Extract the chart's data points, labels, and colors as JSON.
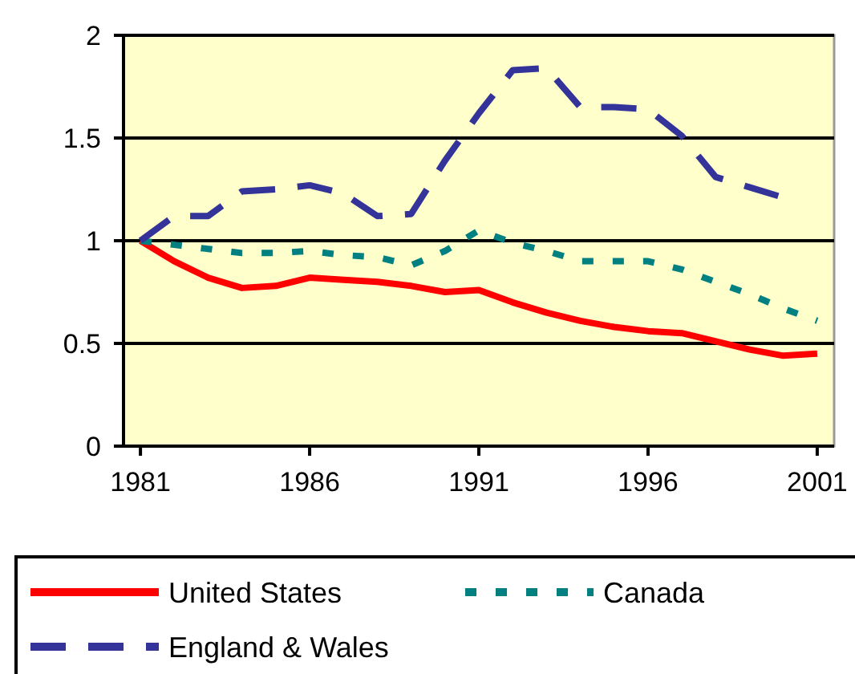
{
  "chart_data": {
    "type": "line",
    "x": [
      1981,
      1982,
      1983,
      1984,
      1985,
      1986,
      1987,
      1988,
      1989,
      1990,
      1991,
      1992,
      1993,
      1994,
      1995,
      1996,
      1997,
      1998,
      1999,
      2000,
      2001
    ],
    "series": [
      {
        "name": "United States",
        "color": "#ff0000",
        "line_style": "solid",
        "values": [
          1.0,
          0.9,
          0.82,
          0.77,
          0.78,
          0.82,
          0.81,
          0.8,
          0.78,
          0.75,
          0.76,
          0.7,
          0.65,
          0.61,
          0.58,
          0.56,
          0.55,
          0.51,
          0.47,
          0.44,
          0.45
        ]
      },
      {
        "name": "Canada",
        "color": "#008080",
        "line_style": "dotted",
        "values": [
          1.0,
          0.98,
          0.96,
          0.94,
          0.94,
          0.95,
          0.93,
          0.92,
          0.88,
          0.95,
          1.05,
          0.99,
          0.95,
          0.9,
          0.9,
          0.9,
          0.86,
          0.8,
          0.74,
          0.67,
          0.61
        ]
      },
      {
        "name": "England & Wales",
        "color": "#333399",
        "line_style": "dashed",
        "values": [
          1.0,
          1.12,
          1.12,
          1.24,
          1.25,
          1.27,
          1.23,
          1.12,
          1.13,
          1.39,
          1.62,
          1.83,
          1.84,
          1.65,
          1.65,
          1.64,
          1.51,
          1.31,
          1.26,
          1.21,
          null
        ]
      }
    ],
    "xlim": [
      1980.5,
      2001.5
    ],
    "xticks": [
      1981,
      1986,
      1991,
      1996,
      2001
    ],
    "ylim": [
      0,
      2
    ],
    "yticks": [
      0,
      0.5,
      1,
      1.5,
      2
    ],
    "grid": "y",
    "legend": "bottom"
  }
}
